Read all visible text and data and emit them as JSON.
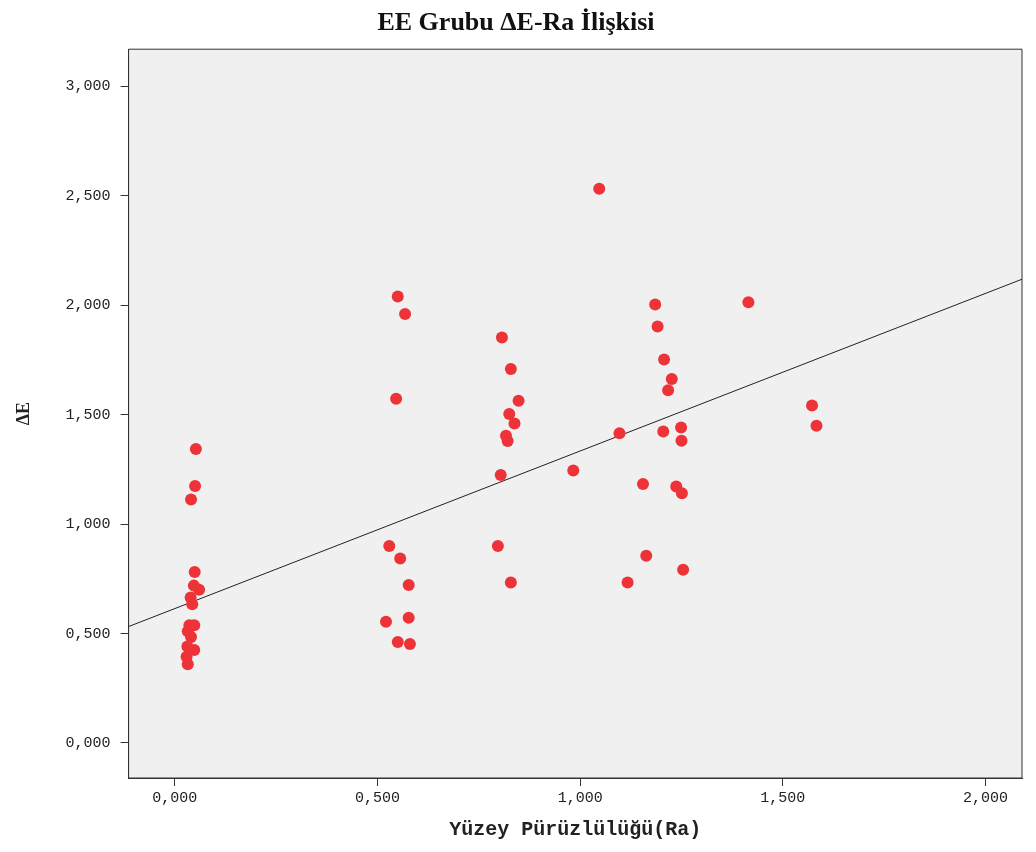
{
  "chart_data": {
    "type": "scatter",
    "title": "EE Grubu ΔE-Ra İlişkisi",
    "xlabel": "Yüzey Pürüzlülüğü(Ra)",
    "ylabel": "ΔE",
    "xlim": [
      -0.114,
      2.09
    ],
    "ylim": [
      -0.16,
      3.17
    ],
    "xticks": [
      {
        "value": 0,
        "label": "0,000"
      },
      {
        "value": 0.5,
        "label": "0,500"
      },
      {
        "value": 1,
        "label": "1,000"
      },
      {
        "value": 1.5,
        "label": "1,500"
      },
      {
        "value": 2,
        "label": "2,000"
      }
    ],
    "yticks": [
      {
        "value": 0,
        "label": "0,000"
      },
      {
        "value": 0.5,
        "label": "0,500"
      },
      {
        "value": 1,
        "label": "1,000"
      },
      {
        "value": 1.5,
        "label": "1,500"
      },
      {
        "value": 2,
        "label": "2,000"
      },
      {
        "value": 2.5,
        "label": "2,500"
      },
      {
        "value": 3,
        "label": "3,000"
      }
    ],
    "grid": false,
    "legend": false,
    "series": [
      {
        "marker": "circle",
        "color": "#ee3338",
        "x": [
          0.052,
          0.05,
          0.04,
          0.049,
          0.047,
          0.06,
          0.039,
          0.043,
          0.036,
          0.048,
          0.032,
          0.04,
          0.031,
          0.048,
          0.029,
          0.032,
          0.55,
          0.568,
          0.546,
          0.529,
          0.556,
          0.577,
          0.521,
          0.577,
          0.55,
          0.58,
          0.807,
          0.829,
          0.848,
          0.825,
          0.838,
          0.817,
          0.821,
          0.804,
          0.797,
          0.829,
          1.047,
          0.983,
          1.097,
          1.185,
          1.191,
          1.207,
          1.226,
          1.217,
          1.205,
          1.249,
          1.25,
          1.155,
          1.237,
          1.251,
          1.163,
          1.117,
          1.254,
          1.415,
          1.572,
          1.583
        ],
        "values": [
          1.343,
          1.174,
          1.112,
          0.781,
          0.719,
          0.7,
          0.665,
          0.634,
          0.538,
          0.538,
          0.51,
          0.484,
          0.441,
          0.425,
          0.394,
          0.36,
          2.04,
          1.96,
          1.573,
          0.9,
          0.843,
          0.722,
          0.554,
          0.572,
          0.461,
          0.452,
          1.853,
          1.709,
          1.564,
          1.503,
          1.46,
          1.404,
          1.38,
          1.224,
          0.9,
          0.733,
          2.532,
          1.245,
          1.415,
          2.003,
          1.903,
          1.752,
          1.663,
          1.612,
          1.423,
          1.441,
          1.381,
          1.183,
          1.172,
          1.141,
          0.855,
          0.733,
          0.792,
          2.014,
          1.542,
          1.45
        ]
      },
      {
        "type": "line",
        "marker": "none",
        "color": "#222222",
        "x": [
          -0.114,
          2.09
        ],
        "values": [
          0.532,
          2.119
        ]
      }
    ]
  }
}
